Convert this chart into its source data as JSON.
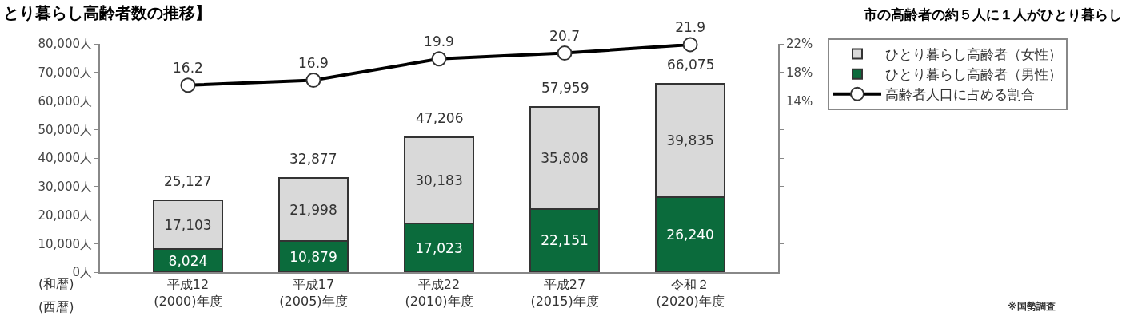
{
  "chart_data": {
    "type": "bar",
    "title": "とり暮らし高齢者数の推移】",
    "subtitle": "市の高齢者の約５人に１人がひとり暮らし",
    "categories": [
      "平成12\n(2000)年度",
      "平成17\n(2005)年度",
      "平成22\n(2010)年度",
      "平成27\n(2015)年度",
      "令和２\n(2020)年度"
    ],
    "stacked": true,
    "series": [
      {
        "name": "ひとり暮らし高齢者（男性）",
        "color": "#0b6b3c",
        "values": [
          8024,
          10879,
          17023,
          22151,
          26240
        ],
        "value_labels": [
          "8,024",
          "10,879",
          "17,023",
          "22,151",
          "26,240"
        ]
      },
      {
        "name": "ひとり暮らし高齢者（女性）",
        "color": "#d9d9d9",
        "values": [
          17103,
          21998,
          30183,
          35808,
          39835
        ],
        "value_labels": [
          "17,103",
          "21,998",
          "30,183",
          "35,808",
          "39,835"
        ]
      },
      {
        "name": "高齢者人口に占める割合",
        "type": "line",
        "axis": "y2",
        "color": "#000000",
        "marker": "circle",
        "values": [
          16.2,
          16.9,
          19.9,
          20.7,
          21.9
        ],
        "value_labels": [
          "16.2",
          "16.9",
          "19.9",
          "20.7",
          "21.9"
        ]
      }
    ],
    "totals": [
      "25,127",
      "32,877",
      "47,206",
      "57,959",
      "66,075"
    ],
    "ylim": [
      0,
      80000
    ],
    "yticks": [
      {
        "value": 0,
        "label": "0人"
      },
      {
        "value": 10000,
        "label": "10,000人"
      },
      {
        "value": 20000,
        "label": "20,000人"
      },
      {
        "value": 30000,
        "label": "30,000人"
      },
      {
        "value": 40000,
        "label": "40,000人"
      },
      {
        "value": 50000,
        "label": "50,000人"
      },
      {
        "value": 60000,
        "label": "60,000人"
      },
      {
        "value": 70000,
        "label": "70,000人"
      },
      {
        "value": 80000,
        "label": "80,000人"
      }
    ],
    "y2lim": [
      -10,
      22
    ],
    "y2ticks": [
      {
        "value": -6,
        "label": null
      },
      {
        "value": -2,
        "label": null
      },
      {
        "value": 2,
        "label": null
      },
      {
        "value": 6,
        "label": null
      },
      {
        "value": 10,
        "label": null
      },
      {
        "value": 14,
        "label": "14%"
      },
      {
        "value": 18,
        "label": "18%"
      },
      {
        "value": 22,
        "label": "22%"
      }
    ],
    "annotations": [
      "(和暦)",
      "(西暦)",
      "※国勢調査"
    ],
    "legend": "right"
  }
}
